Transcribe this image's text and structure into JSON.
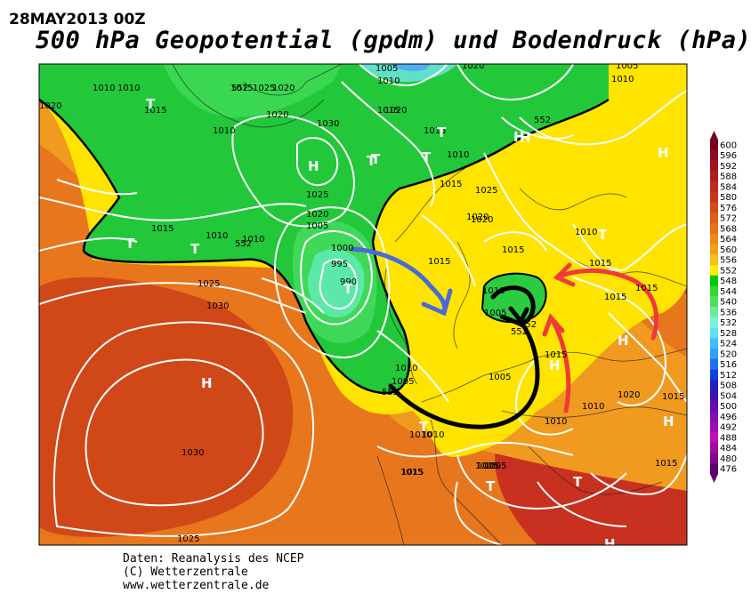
{
  "header": {
    "date": "28MAY2013 00Z",
    "title": "500 hPa Geopotential (gpdm) und Bodendruck (hPa)"
  },
  "footer": {
    "line1": "Daten: Reanalysis des NCEP",
    "line2": "(C) Wetterzentrale",
    "line3": "www.wetterzentrale.de"
  },
  "scale": {
    "labels": [
      "600",
      "596",
      "592",
      "588",
      "584",
      "580",
      "576",
      "572",
      "568",
      "564",
      "560",
      "556",
      "552",
      "548",
      "544",
      "540",
      "536",
      "532",
      "528",
      "524",
      "520",
      "516",
      "512",
      "508",
      "504",
      "500",
      "496",
      "492",
      "488",
      "484",
      "480",
      "476"
    ],
    "colors": [
      "#7a0020",
      "#8c0a22",
      "#a01424",
      "#b01c20",
      "#c02820",
      "#cc3418",
      "#d84818",
      "#e05c18",
      "#e87018",
      "#ee8818",
      "#f4a018",
      "#f8c018",
      "#ffee00",
      "#00c800",
      "#30d830",
      "#50e060",
      "#70e8a0",
      "#80f0d0",
      "#60e0f0",
      "#40c0f8",
      "#30a0f8",
      "#2070f0",
      "#1040e0",
      "#2020c0",
      "#4010b0",
      "#6010b0",
      "#8010b0",
      "#a010b0",
      "#c010b0",
      "#a00aa0",
      "#80088c",
      "#600070"
    ]
  },
  "map": {
    "colors": {
      "base": "#e8761c",
      "warm": "#f0a020",
      "yellow": "#ffee00",
      "green": "#20c840",
      "lightgreen": "#60e070",
      "cyan": "#70e8b0",
      "blue_light": "#50c8f0",
      "deep_red": "#c02820",
      "contour": "#ffffff",
      "arrow_blue": "#4060d0",
      "arrow_red": "#f03030",
      "arrow_black": "#000000"
    },
    "pressure_labels": [
      "1010",
      "1010",
      "1015",
      "1020",
      "1025",
      "1005",
      "1010",
      "1020",
      "1005",
      "1010",
      "1020",
      "1015",
      "1020",
      "1030",
      "1015",
      "1010",
      "1020",
      "1015",
      "1025",
      "1020",
      "1015",
      "1010",
      "1010",
      "1005",
      "1000",
      "995",
      "990",
      "1015",
      "1020",
      "1025",
      "1010",
      "1015",
      "1015",
      "1020",
      "1025",
      "1030",
      "1005",
      "1010",
      "1015",
      "1010",
      "1010",
      "1005",
      "1015",
      "1015",
      "1015",
      "1010",
      "1005",
      "1030",
      "1025",
      "1015",
      "1015",
      "1020",
      "1010",
      "1010",
      "1005",
      "1015",
      "1005",
      "1005",
      "1010",
      "1015"
    ],
    "contour_labels": [
      "552",
      "552",
      "552",
      "552",
      "552",
      "552"
    ],
    "pressure_centers": [
      "T",
      "T",
      "T",
      "T",
      "T",
      "T",
      "T",
      "H",
      "H",
      "H",
      "H",
      "H",
      "H",
      "H",
      "H",
      "T",
      "T",
      "T",
      "T",
      "T",
      "H"
    ]
  }
}
